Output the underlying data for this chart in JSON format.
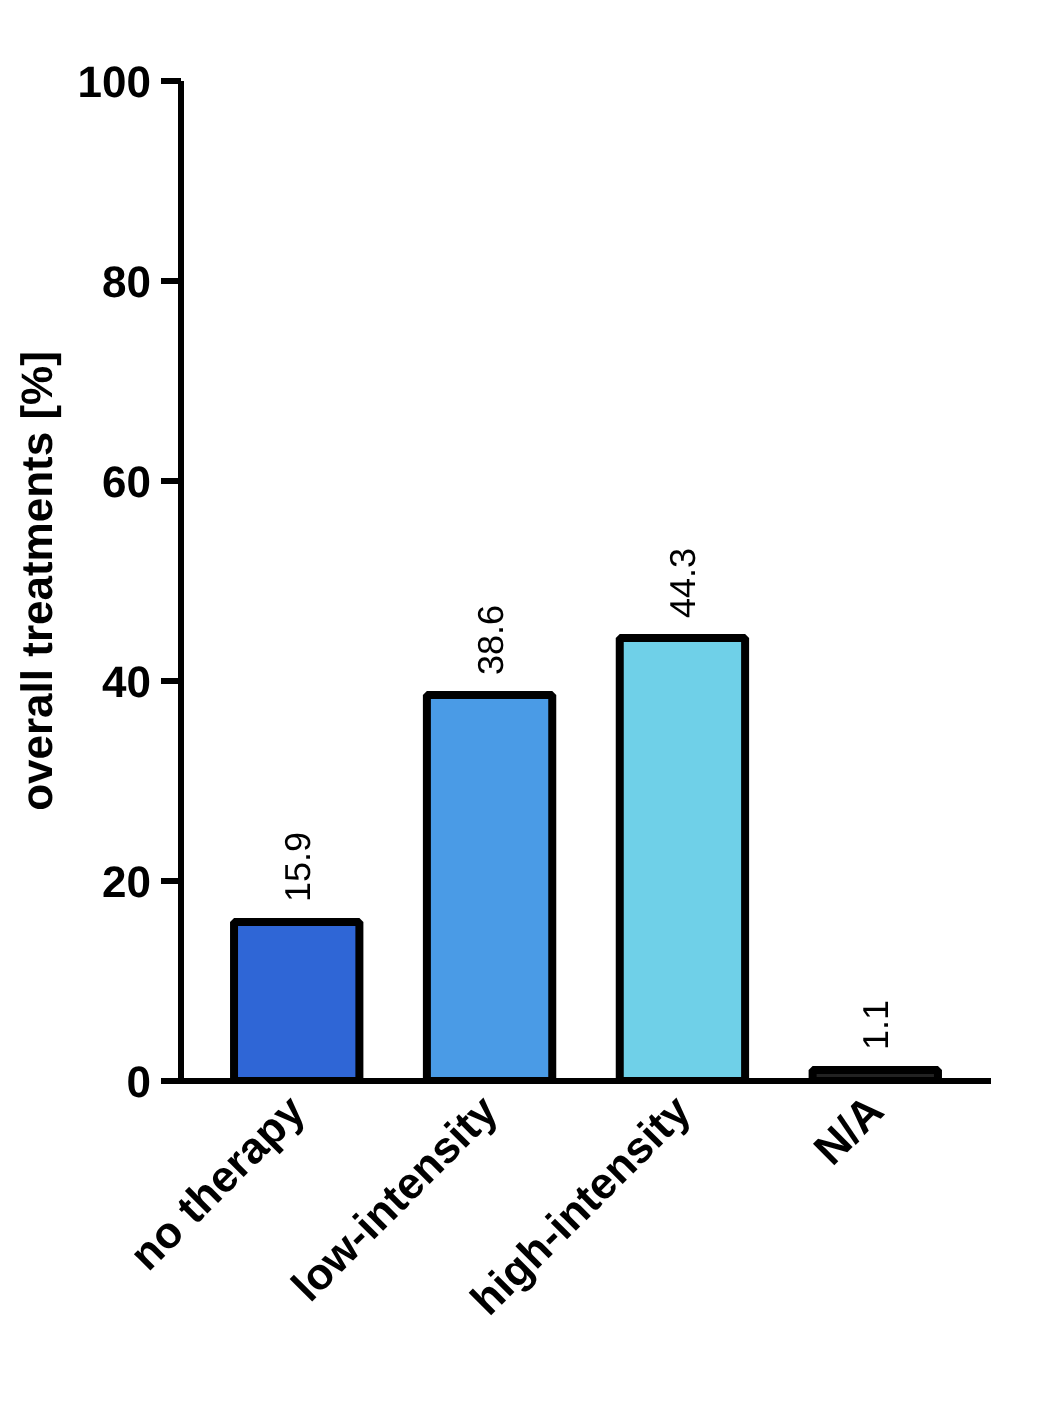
{
  "chart_data": {
    "type": "bar",
    "ylabel": "overall treatments [%]",
    "categories": [
      "no therapy",
      "low-intensity",
      "high-intensity",
      "N/A"
    ],
    "values": [
      15.9,
      38.6,
      44.3,
      1.1
    ],
    "colors": [
      "#2f66d6",
      "#4a9be6",
      "#6fd0e8",
      "#222222"
    ],
    "ylim": [
      0,
      100
    ],
    "yticks": [
      0,
      20,
      40,
      60,
      80,
      100
    ],
    "data_labels": true
  }
}
